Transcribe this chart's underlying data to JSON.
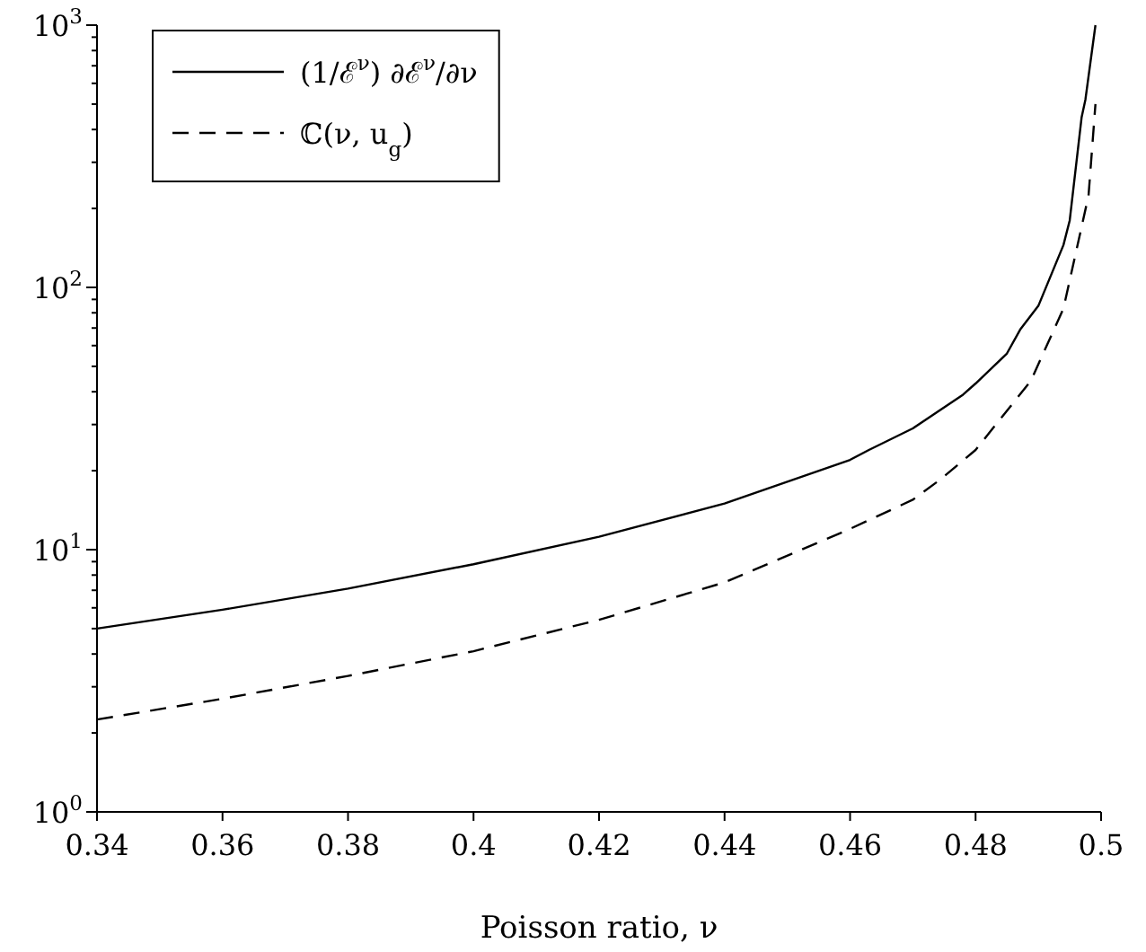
{
  "chart_data": {
    "type": "line",
    "xlabel": "Poisson ratio, ν",
    "log": "y",
    "xlim": [
      0.34,
      0.5
    ],
    "ylim": [
      1,
      1000
    ],
    "xticks": [
      0.34,
      0.36,
      0.38,
      {
        "value": 0.4,
        "label": "0.4"
      },
      0.42,
      0.44,
      0.46,
      0.48,
      {
        "value": 0.5,
        "label": "0.5"
      }
    ],
    "yticks": [
      {
        "value": 1,
        "label": "10$^{0}$"
      },
      {
        "value": 10,
        "label": "10$^{1}$"
      },
      {
        "value": 100,
        "label": "10$^{2}$"
      },
      {
        "value": 1000,
        "label": "10$^{3}$"
      }
    ],
    "grid": false,
    "legend": "top left",
    "marker": "none",
    "series": [
      {
        "name": "(1/ℰ$^{ν}$) ∂ℰ$^{ν}$/∂ν",
        "color": "#000000",
        "line_style": "solid",
        "x": [
          0.34,
          0.36,
          0.38,
          0.4,
          0.42,
          0.44,
          0.46,
          0.463,
          0.47,
          0.478,
          0.48,
          0.485,
          0.4871,
          0.49,
          0.494,
          0.495,
          0.4969,
          0.4975,
          0.4991
        ],
        "values": [
          5,
          5.9,
          7.1,
          8.8,
          11.2,
          15,
          22,
          24,
          29,
          39,
          43,
          56,
          69,
          85,
          145,
          180,
          446,
          520,
          1000
        ]
      },
      {
        "name": "ℂ(ν, u$_{g}$)",
        "color": "#000000",
        "line_style": "dashed",
        "x": [
          0.34,
          0.36,
          0.38,
          0.4,
          0.42,
          0.44,
          0.46,
          0.47,
          0.4745,
          0.48,
          0.4888,
          0.494,
          0.498,
          0.4991
        ],
        "values": [
          2.25,
          2.7,
          3.3,
          4.1,
          5.4,
          7.5,
          12,
          15.5,
          18.6,
          24,
          44,
          83,
          224,
          500
        ]
      }
    ]
  }
}
